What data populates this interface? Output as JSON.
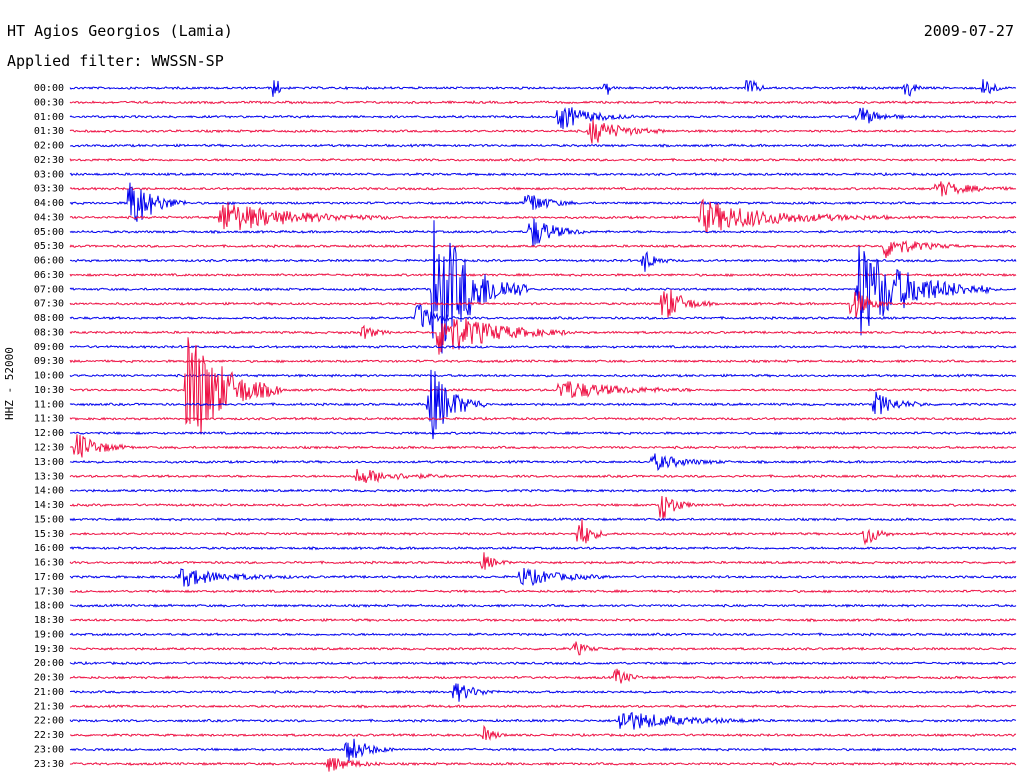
{
  "header": {
    "station": "HT Agios Georgios (Lamia)",
    "date": "2009-07-27",
    "filter": "Applied filter: WWSSN-SP"
  },
  "chart_data": {
    "type": "line",
    "title": "HT Agios Georgios (Lamia)",
    "subtitle": "Applied filter: WWSSN-SP",
    "ylabel": "HHZ - 52000",
    "xlabel": "",
    "rows": [
      "00:00",
      "00:30",
      "01:00",
      "01:30",
      "02:00",
      "02:30",
      "03:00",
      "03:30",
      "04:00",
      "04:30",
      "05:00",
      "05:30",
      "06:00",
      "06:30",
      "07:00",
      "07:30",
      "08:00",
      "08:30",
      "09:00",
      "09:30",
      "10:00",
      "10:30",
      "11:00",
      "11:30",
      "12:00",
      "12:30",
      "13:00",
      "13:30",
      "14:00",
      "14:30",
      "15:00",
      "15:30",
      "16:00",
      "16:30",
      "17:00",
      "17:30",
      "18:00",
      "18:30",
      "19:00",
      "19:30",
      "20:00",
      "20:30",
      "21:00",
      "21:30",
      "22:00",
      "22:30",
      "23:00",
      "23:30"
    ],
    "row_colors": [
      "#0000ee",
      "#ee1144"
    ],
    "grid": false,
    "legend": "none",
    "events": [
      {
        "row": "00:00",
        "minute": 6.5,
        "amp": 1.2,
        "dur": 0.1
      },
      {
        "row": "00:00",
        "minute": 17,
        "amp": 0.8,
        "dur": 0.1
      },
      {
        "row": "00:00",
        "minute": 21.5,
        "amp": 1.0,
        "dur": 0.2
      },
      {
        "row": "00:00",
        "minute": 26.5,
        "amp": 1.1,
        "dur": 0.2
      },
      {
        "row": "00:00",
        "minute": 29,
        "amp": 1.2,
        "dur": 0.2
      },
      {
        "row": "01:00",
        "minute": 15.5,
        "amp": 1.0,
        "dur": 0.8
      },
      {
        "row": "01:00",
        "minute": 25,
        "amp": 0.8,
        "dur": 0.5
      },
      {
        "row": "01:30",
        "minute": 16.5,
        "amp": 1.0,
        "dur": 0.8
      },
      {
        "row": "03:30",
        "minute": 27.5,
        "amp": 0.6,
        "dur": 0.8
      },
      {
        "row": "04:00",
        "minute": 1.9,
        "amp": 2.2,
        "dur": 0.6
      },
      {
        "row": "04:00",
        "minute": 14.5,
        "amp": 0.9,
        "dur": 0.5
      },
      {
        "row": "04:30",
        "minute": 4.8,
        "amp": 1.2,
        "dur": 1.8
      },
      {
        "row": "04:30",
        "minute": 20,
        "amp": 1.2,
        "dur": 2.0
      },
      {
        "row": "05:00",
        "minute": 14.6,
        "amp": 1.3,
        "dur": 0.6
      },
      {
        "row": "05:30",
        "minute": 25.8,
        "amp": 0.9,
        "dur": 0.8
      },
      {
        "row": "06:00",
        "minute": 18.2,
        "amp": 0.9,
        "dur": 0.3
      },
      {
        "row": "07:00",
        "minute": 11.5,
        "amp": 6.0,
        "dur": 1.0
      },
      {
        "row": "07:00",
        "minute": 25.0,
        "amp": 3.5,
        "dur": 1.4
      },
      {
        "row": "07:30",
        "minute": 18.8,
        "amp": 1.6,
        "dur": 0.5
      },
      {
        "row": "07:30",
        "minute": 24.8,
        "amp": 1.4,
        "dur": 0.4
      },
      {
        "row": "08:00",
        "minute": 11.0,
        "amp": 1.3,
        "dur": 0.4
      },
      {
        "row": "08:30",
        "minute": 11.7,
        "amp": 1.8,
        "dur": 1.4
      },
      {
        "row": "08:30",
        "minute": 9.3,
        "amp": 0.6,
        "dur": 0.3
      },
      {
        "row": "10:30",
        "minute": 3.7,
        "amp": 5.0,
        "dur": 1.0
      },
      {
        "row": "10:30",
        "minute": 15.5,
        "amp": 0.8,
        "dur": 1.4
      },
      {
        "row": "11:00",
        "minute": 11.4,
        "amp": 3.0,
        "dur": 0.6
      },
      {
        "row": "11:00",
        "minute": 25.5,
        "amp": 0.9,
        "dur": 0.6
      },
      {
        "row": "12:30",
        "minute": 0.2,
        "amp": 1.1,
        "dur": 0.6
      },
      {
        "row": "13:00",
        "minute": 18.5,
        "amp": 0.6,
        "dur": 0.8
      },
      {
        "row": "13:30",
        "minute": 9.1,
        "amp": 0.6,
        "dur": 1.0
      },
      {
        "row": "14:30",
        "minute": 18.7,
        "amp": 1.3,
        "dur": 0.4
      },
      {
        "row": "15:30",
        "minute": 16.1,
        "amp": 1.6,
        "dur": 0.3
      },
      {
        "row": "15:30",
        "minute": 25.2,
        "amp": 1.1,
        "dur": 0.3
      },
      {
        "row": "16:30",
        "minute": 13.1,
        "amp": 0.7,
        "dur": 0.3
      },
      {
        "row": "17:00",
        "minute": 3.5,
        "amp": 0.7,
        "dur": 1.2
      },
      {
        "row": "17:00",
        "minute": 14.3,
        "amp": 0.7,
        "dur": 1.0
      },
      {
        "row": "19:30",
        "minute": 16.0,
        "amp": 0.6,
        "dur": 0.3
      },
      {
        "row": "20:30",
        "minute": 17.3,
        "amp": 0.8,
        "dur": 0.3
      },
      {
        "row": "21:00",
        "minute": 12.2,
        "amp": 0.8,
        "dur": 0.5
      },
      {
        "row": "22:00",
        "minute": 17.4,
        "amp": 0.8,
        "dur": 1.5
      },
      {
        "row": "22:30",
        "minute": 13.1,
        "amp": 0.6,
        "dur": 0.3
      },
      {
        "row": "23:00",
        "minute": 8.8,
        "amp": 1.1,
        "dur": 0.5
      },
      {
        "row": "23:30",
        "minute": 8.2,
        "amp": 0.6,
        "dur": 0.6
      }
    ]
  }
}
